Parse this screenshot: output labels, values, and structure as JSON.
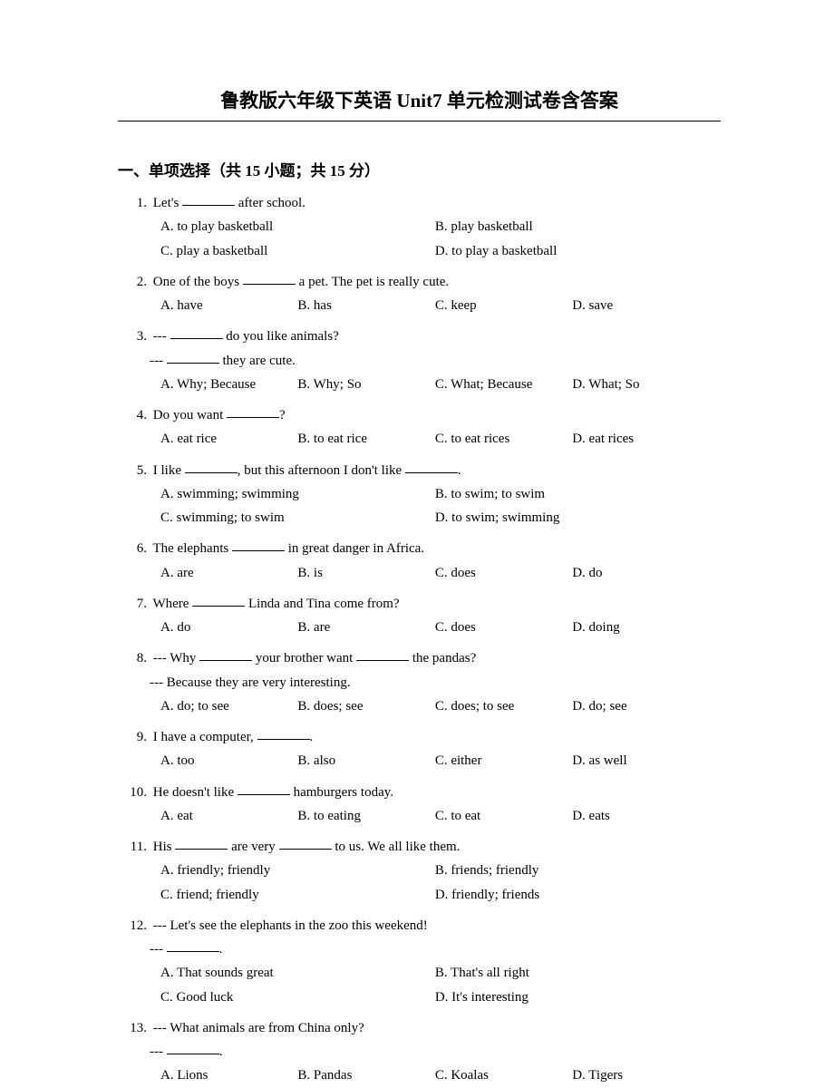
{
  "title": "鲁教版六年级下英语 Unit7 单元检测试卷含答案",
  "section_header": "一、单项选择（共 15 小题；共 15 分）",
  "questions": [
    {
      "num": "1.",
      "text_before": "Let's ",
      "text_after": " after school.",
      "layout": "two-col",
      "options": [
        {
          "label": "A.",
          "text": "to play basketball"
        },
        {
          "label": "B.",
          "text": "play basketball"
        },
        {
          "label": "C.",
          "text": "play a basketball"
        },
        {
          "label": "D.",
          "text": "to play a basketball"
        }
      ]
    },
    {
      "num": "2.",
      "text_before": "One of the boys ",
      "text_after": " a pet. The pet is really cute.",
      "layout": "four-col",
      "options": [
        {
          "label": "A.",
          "text": "have"
        },
        {
          "label": "B.",
          "text": "has"
        },
        {
          "label": "C.",
          "text": "keep"
        },
        {
          "label": "D.",
          "text": "save"
        }
      ]
    },
    {
      "num": "3.",
      "lines": [
        {
          "pre": "--- ",
          "blank": true,
          "post": " do you like animals?"
        },
        {
          "pre": "--- ",
          "blank": true,
          "post": " they are cute."
        }
      ],
      "layout": "four-col",
      "options": [
        {
          "label": "A.",
          "text": "Why; Because"
        },
        {
          "label": "B.",
          "text": "Why; So"
        },
        {
          "label": "C.",
          "text": "What; Because"
        },
        {
          "label": "D.",
          "text": "What; So"
        }
      ]
    },
    {
      "num": "4.",
      "text_before": "Do you want ",
      "text_after": "?",
      "layout": "four-col",
      "options": [
        {
          "label": "A.",
          "text": "eat rice"
        },
        {
          "label": "B.",
          "text": "to eat rice"
        },
        {
          "label": "C.",
          "text": "to eat rices"
        },
        {
          "label": "D.",
          "text": "eat rices"
        }
      ]
    },
    {
      "num": "5.",
      "text_before": "I like ",
      "mid": ", but this afternoon I don't like ",
      "text_after": ".",
      "double_blank": true,
      "layout": "two-col",
      "options": [
        {
          "label": "A.",
          "text": "swimming; swimming"
        },
        {
          "label": "B.",
          "text": "to swim; to swim"
        },
        {
          "label": "C.",
          "text": "swimming; to swim"
        },
        {
          "label": "D.",
          "text": "to swim; swimming"
        }
      ]
    },
    {
      "num": "6.",
      "text_before": "The elephants ",
      "text_after": " in great danger in Africa.",
      "layout": "four-col",
      "options": [
        {
          "label": "A.",
          "text": "are"
        },
        {
          "label": "B.",
          "text": "is"
        },
        {
          "label": "C.",
          "text": "does"
        },
        {
          "label": "D.",
          "text": "do"
        }
      ]
    },
    {
      "num": "7.",
      "text_before": "Where ",
      "text_after": " Linda and Tina come from?",
      "layout": "four-col",
      "options": [
        {
          "label": "A.",
          "text": "do"
        },
        {
          "label": "B.",
          "text": "are"
        },
        {
          "label": "C.",
          "text": "does"
        },
        {
          "label": "D.",
          "text": "doing"
        }
      ]
    },
    {
      "num": "8.",
      "lines": [
        {
          "pre": "--- Why ",
          "blank": true,
          "mid": " your brother want ",
          "blank2": true,
          "post": " the pandas?"
        },
        {
          "pre": "--- Because they are very interesting.",
          "blank": false
        }
      ],
      "layout": "four-col",
      "options": [
        {
          "label": "A.",
          "text": "do; to see"
        },
        {
          "label": "B.",
          "text": "does; see"
        },
        {
          "label": "C.",
          "text": "does; to see"
        },
        {
          "label": "D.",
          "text": "do; see"
        }
      ]
    },
    {
      "num": "9.",
      "text_before": "I have a computer, ",
      "text_after": ".",
      "layout": "four-col",
      "options": [
        {
          "label": "A.",
          "text": "too"
        },
        {
          "label": "B.",
          "text": "also"
        },
        {
          "label": "C.",
          "text": "either"
        },
        {
          "label": "D.",
          "text": "as well"
        }
      ]
    },
    {
      "num": "10.",
      "text_before": "He doesn't like ",
      "text_after": " hamburgers today.",
      "layout": "four-col",
      "options": [
        {
          "label": "A.",
          "text": "eat"
        },
        {
          "label": "B.",
          "text": "to eating"
        },
        {
          "label": "C.",
          "text": "to eat"
        },
        {
          "label": "D.",
          "text": "eats"
        }
      ]
    },
    {
      "num": "11.",
      "text_before": "His ",
      "mid": " are very ",
      "text_after": " to us. We all like them.",
      "double_blank": true,
      "layout": "two-col",
      "options": [
        {
          "label": "A.",
          "text": "friendly; friendly"
        },
        {
          "label": "B.",
          "text": "friends; friendly"
        },
        {
          "label": "C.",
          "text": "friend; friendly"
        },
        {
          "label": "D.",
          "text": "friendly; friends"
        }
      ]
    },
    {
      "num": "12.",
      "lines": [
        {
          "pre": "--- Let's see the elephants in the zoo this weekend!",
          "blank": false
        },
        {
          "pre": "--- ",
          "blank": true,
          "post": "."
        }
      ],
      "layout": "two-col",
      "options": [
        {
          "label": "A.",
          "text": "That sounds great"
        },
        {
          "label": "B.",
          "text": "That's all right"
        },
        {
          "label": "C.",
          "text": "Good luck"
        },
        {
          "label": "D.",
          "text": "It's interesting"
        }
      ]
    },
    {
      "num": "13.",
      "lines": [
        {
          "pre": "--- What animals are from China only?",
          "blank": false
        },
        {
          "pre": "--- ",
          "blank": true,
          "post": "."
        }
      ],
      "layout": "four-col",
      "options": [
        {
          "label": "A.",
          "text": "Lions"
        },
        {
          "label": "B.",
          "text": "Pandas"
        },
        {
          "label": "C.",
          "text": "Koalas"
        },
        {
          "label": "D.",
          "text": "Tigers"
        }
      ]
    }
  ]
}
